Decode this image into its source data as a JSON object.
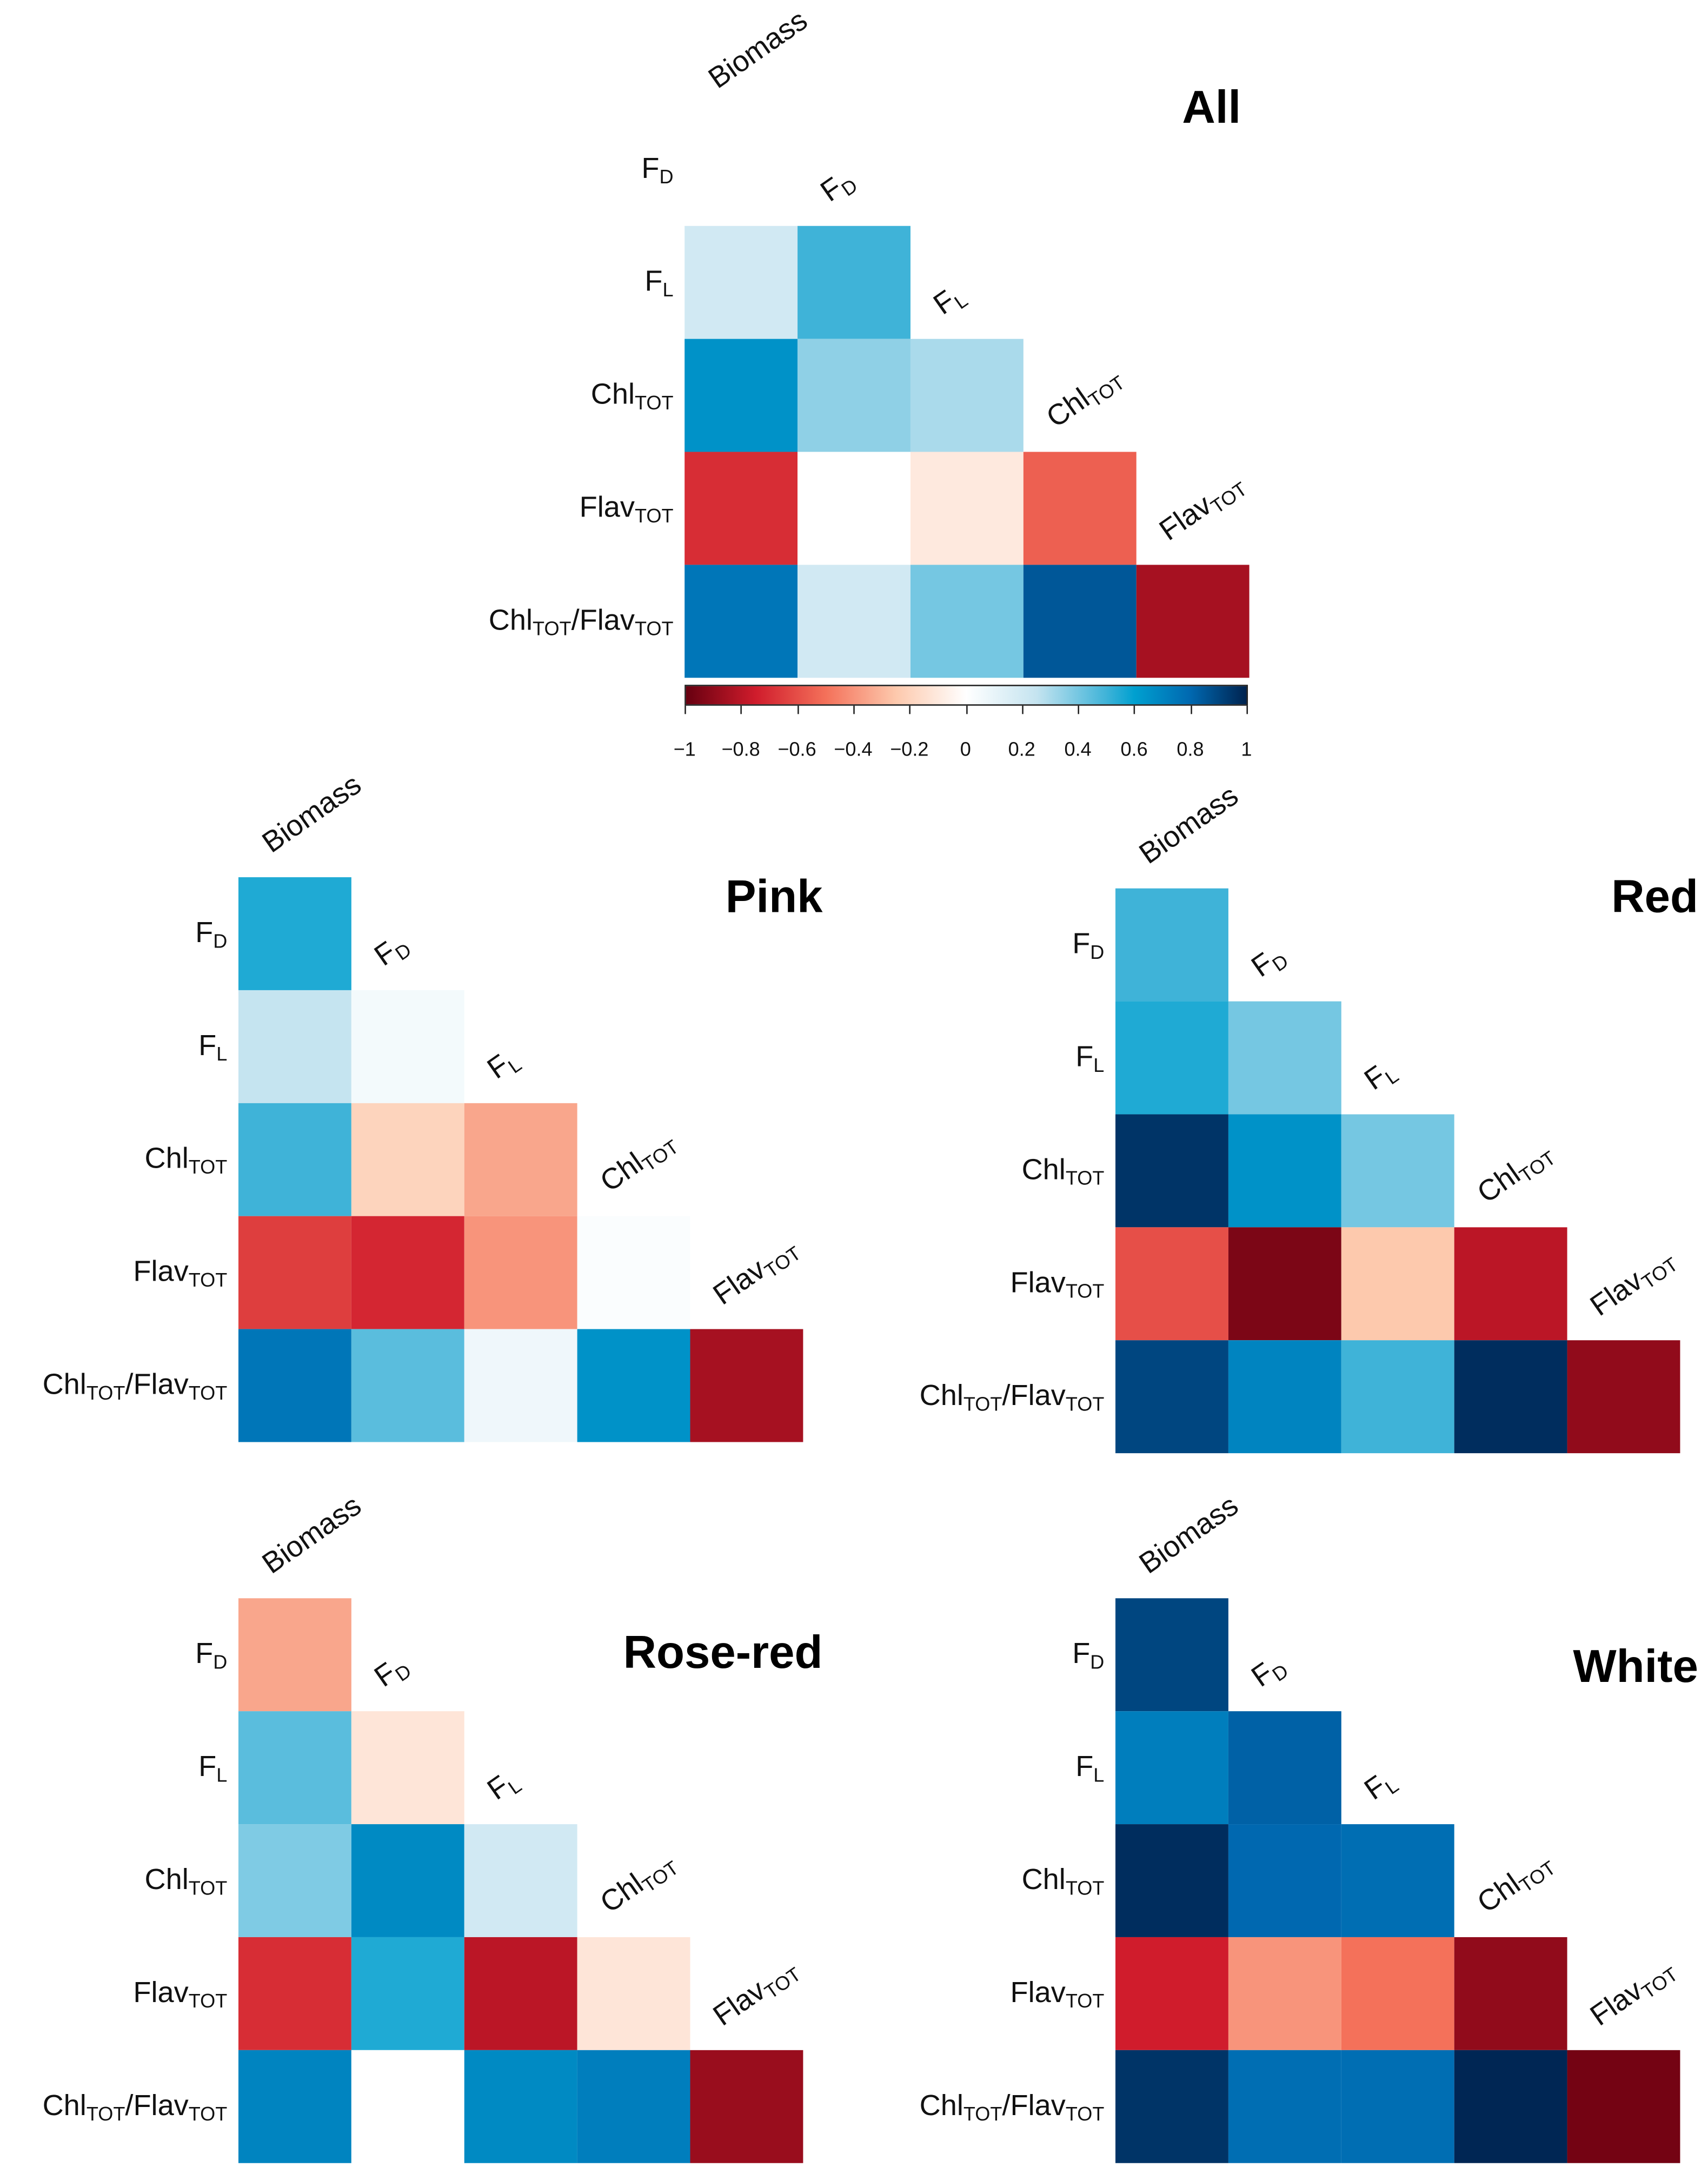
{
  "chart_data": {
    "type": "heatmap",
    "variables": [
      {
        "main": "Biomass",
        "sub": ""
      },
      {
        "main": "F",
        "sub": "D"
      },
      {
        "main": "F",
        "sub": "L"
      },
      {
        "main": "Chl",
        "sub": "TOT"
      },
      {
        "main": "Flav",
        "sub": "TOT"
      },
      {
        "main": "Chl",
        "sub": "TOT",
        "main2": "/Flav",
        "sub2": "TOT"
      }
    ],
    "colorbar": {
      "ticks": [
        "−1",
        "−0.8",
        "−0.6",
        "−0.4",
        "−0.2",
        "0",
        "0.2",
        "0.4",
        "0.6",
        "0.8",
        "1"
      ],
      "range": [
        -1,
        1
      ],
      "low_color": "#67001f",
      "mid_color": "#ffffff",
      "high_color": "#00234f"
    },
    "panels": [
      {
        "title": "All",
        "matrix": [
          [
            0.0
          ],
          [
            0.2,
            0.5
          ],
          [
            0.65,
            0.35,
            0.3
          ],
          [
            -0.7,
            0.0,
            -0.1,
            -0.55
          ],
          [
            0.75,
            0.2,
            0.4,
            0.85,
            -0.85
          ]
        ]
      },
      {
        "title": "Pink",
        "matrix": [
          [
            0.55
          ],
          [
            0.25,
            0.05
          ],
          [
            0.5,
            -0.2,
            -0.35
          ],
          [
            -0.65,
            -0.72,
            -0.4,
            0.02
          ],
          [
            0.75,
            0.45,
            0.07,
            0.65,
            -0.85
          ]
        ]
      },
      {
        "title": "Red",
        "matrix": [
          [
            0.5
          ],
          [
            0.55,
            0.4
          ],
          [
            0.95,
            0.65,
            0.4
          ],
          [
            -0.6,
            -0.95,
            -0.25,
            -0.8
          ],
          [
            0.9,
            0.7,
            0.5,
            0.97,
            -0.9
          ]
        ]
      },
      {
        "title": "Rose-red",
        "matrix": [
          [
            -0.35
          ],
          [
            0.45,
            -0.12
          ],
          [
            0.38,
            0.68,
            0.2
          ],
          [
            -0.7,
            0.55,
            -0.8,
            -0.12
          ],
          [
            0.7,
            0.0,
            0.68,
            0.72,
            -0.88
          ]
        ]
      },
      {
        "title": "White",
        "matrix": [
          [
            0.9
          ],
          [
            0.72,
            0.82
          ],
          [
            0.97,
            0.8,
            0.78
          ],
          [
            -0.75,
            -0.4,
            -0.5,
            -0.9
          ],
          [
            0.95,
            0.78,
            0.78,
            0.99,
            -0.97
          ]
        ]
      }
    ]
  }
}
